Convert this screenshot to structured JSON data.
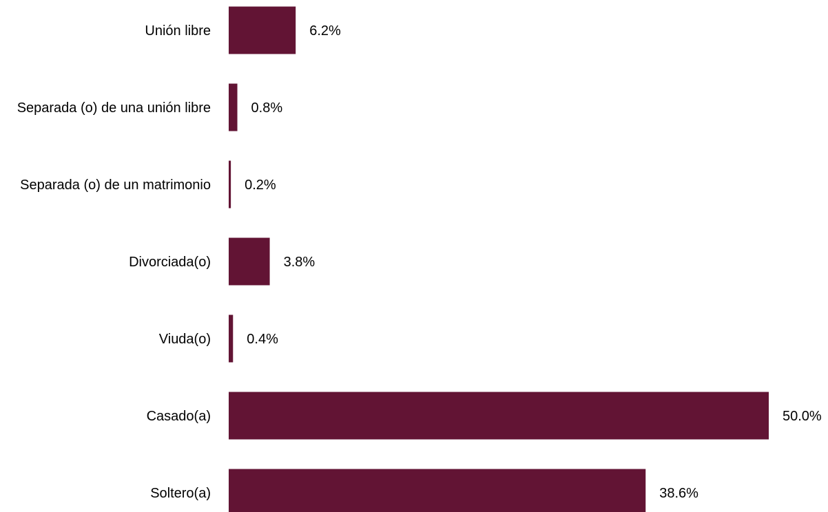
{
  "chart_data": {
    "type": "bar",
    "orientation": "horizontal",
    "categories": [
      "Unión libre",
      "Separada (o) de una unión libre",
      "Separada (o) de un matrimonio",
      "Divorciada(o)",
      "Viuda(o)",
      "Casado(a)",
      "Soltero(a)"
    ],
    "values": [
      6.2,
      0.8,
      0.2,
      3.8,
      0.4,
      50.0,
      38.6
    ],
    "value_labels": [
      "6.2%",
      "0.8%",
      "0.2%",
      "3.8%",
      "0.4%",
      "50.0%",
      "38.6%"
    ],
    "value_unit": "%",
    "xlim": [
      0,
      50
    ],
    "title": "",
    "xlabel": "",
    "ylabel": "",
    "grid": false,
    "legend": "none",
    "bar_color": "#621434"
  }
}
